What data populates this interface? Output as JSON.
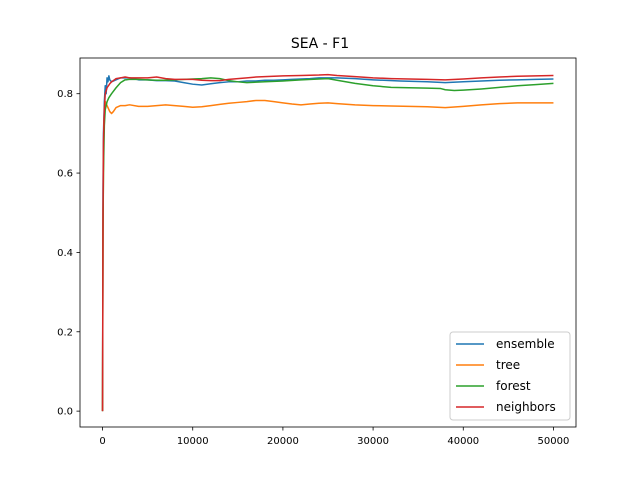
{
  "chart_data": {
    "type": "line",
    "title": "SEA - F1",
    "xlabel": "",
    "ylabel": "",
    "xlim": [
      -2500,
      52500
    ],
    "ylim": [
      -0.04,
      0.89
    ],
    "xticks": [
      0,
      10000,
      20000,
      30000,
      40000,
      50000
    ],
    "xtick_labels": [
      "0",
      "10000",
      "20000",
      "30000",
      "40000",
      "50000"
    ],
    "yticks": [
      0.0,
      0.2,
      0.4,
      0.6,
      0.8
    ],
    "ytick_labels": [
      "0.0",
      "0.2",
      "0.4",
      "0.6",
      "0.8"
    ],
    "grid": false,
    "legend_position": "lower-right",
    "series": [
      {
        "name": "ensemble",
        "color": "#1f77b4",
        "points": [
          [
            0,
            0.0
          ],
          [
            50,
            0.55
          ],
          [
            100,
            0.7
          ],
          [
            200,
            0.78
          ],
          [
            300,
            0.82
          ],
          [
            400,
            0.8
          ],
          [
            500,
            0.84
          ],
          [
            600,
            0.83
          ],
          [
            700,
            0.845
          ],
          [
            800,
            0.835
          ],
          [
            1000,
            0.83
          ],
          [
            1500,
            0.835
          ],
          [
            2000,
            0.84
          ],
          [
            3000,
            0.84
          ],
          [
            4000,
            0.835
          ],
          [
            5000,
            0.835
          ],
          [
            6000,
            0.833
          ],
          [
            7000,
            0.833
          ],
          [
            8000,
            0.832
          ],
          [
            9000,
            0.828
          ],
          [
            10000,
            0.824
          ],
          [
            11000,
            0.822
          ],
          [
            12000,
            0.825
          ],
          [
            13000,
            0.828
          ],
          [
            14000,
            0.83
          ],
          [
            15000,
            0.83
          ],
          [
            16000,
            0.832
          ],
          [
            17000,
            0.832
          ],
          [
            18000,
            0.834
          ],
          [
            19000,
            0.834
          ],
          [
            20000,
            0.835
          ],
          [
            21000,
            0.836
          ],
          [
            22000,
            0.837
          ],
          [
            23000,
            0.838
          ],
          [
            24000,
            0.84
          ],
          [
            25000,
            0.84
          ],
          [
            26000,
            0.84
          ],
          [
            28000,
            0.838
          ],
          [
            30000,
            0.835
          ],
          [
            33000,
            0.832
          ],
          [
            36000,
            0.83
          ],
          [
            38000,
            0.828
          ],
          [
            40000,
            0.83
          ],
          [
            42000,
            0.832
          ],
          [
            44000,
            0.834
          ],
          [
            46000,
            0.835
          ],
          [
            48000,
            0.836
          ],
          [
            50000,
            0.837
          ]
        ]
      },
      {
        "name": "tree",
        "color": "#ff7f0e",
        "points": [
          [
            0,
            0.0
          ],
          [
            50,
            0.45
          ],
          [
            100,
            0.62
          ],
          [
            150,
            0.72
          ],
          [
            200,
            0.76
          ],
          [
            300,
            0.78
          ],
          [
            400,
            0.775
          ],
          [
            600,
            0.765
          ],
          [
            800,
            0.755
          ],
          [
            1000,
            0.75
          ],
          [
            1200,
            0.755
          ],
          [
            1500,
            0.765
          ],
          [
            2000,
            0.77
          ],
          [
            2500,
            0.77
          ],
          [
            3000,
            0.772
          ],
          [
            4000,
            0.768
          ],
          [
            5000,
            0.768
          ],
          [
            6000,
            0.77
          ],
          [
            7000,
            0.772
          ],
          [
            8000,
            0.77
          ],
          [
            9000,
            0.768
          ],
          [
            10000,
            0.766
          ],
          [
            11000,
            0.767
          ],
          [
            12000,
            0.77
          ],
          [
            13000,
            0.773
          ],
          [
            14000,
            0.776
          ],
          [
            15000,
            0.778
          ],
          [
            16000,
            0.78
          ],
          [
            17000,
            0.783
          ],
          [
            18000,
            0.783
          ],
          [
            19000,
            0.78
          ],
          [
            20000,
            0.777
          ],
          [
            21000,
            0.774
          ],
          [
            22000,
            0.772
          ],
          [
            23000,
            0.774
          ],
          [
            24000,
            0.776
          ],
          [
            25000,
            0.777
          ],
          [
            26000,
            0.775
          ],
          [
            28000,
            0.772
          ],
          [
            30000,
            0.77
          ],
          [
            32000,
            0.769
          ],
          [
            34000,
            0.768
          ],
          [
            36000,
            0.767
          ],
          [
            38000,
            0.765
          ],
          [
            40000,
            0.768
          ],
          [
            42000,
            0.772
          ],
          [
            44000,
            0.775
          ],
          [
            46000,
            0.777
          ],
          [
            48000,
            0.777
          ],
          [
            50000,
            0.777
          ]
        ]
      },
      {
        "name": "forest",
        "color": "#2ca02c",
        "points": [
          [
            0,
            0.0
          ],
          [
            50,
            0.45
          ],
          [
            100,
            0.6
          ],
          [
            200,
            0.72
          ],
          [
            300,
            0.76
          ],
          [
            500,
            0.78
          ],
          [
            700,
            0.79
          ],
          [
            1000,
            0.8
          ],
          [
            1500,
            0.815
          ],
          [
            2000,
            0.828
          ],
          [
            2500,
            0.835
          ],
          [
            3000,
            0.836
          ],
          [
            4000,
            0.836
          ],
          [
            5000,
            0.835
          ],
          [
            6000,
            0.834
          ],
          [
            7000,
            0.834
          ],
          [
            8000,
            0.835
          ],
          [
            9000,
            0.836
          ],
          [
            10000,
            0.837
          ],
          [
            11000,
            0.838
          ],
          [
            12000,
            0.84
          ],
          [
            13000,
            0.838
          ],
          [
            14000,
            0.833
          ],
          [
            15000,
            0.83
          ],
          [
            16000,
            0.828
          ],
          [
            18000,
            0.83
          ],
          [
            20000,
            0.832
          ],
          [
            22000,
            0.835
          ],
          [
            24000,
            0.837
          ],
          [
            25000,
            0.838
          ],
          [
            26000,
            0.834
          ],
          [
            28000,
            0.826
          ],
          [
            30000,
            0.82
          ],
          [
            32000,
            0.816
          ],
          [
            34000,
            0.815
          ],
          [
            36000,
            0.814
          ],
          [
            37500,
            0.813
          ],
          [
            38000,
            0.81
          ],
          [
            39000,
            0.808
          ],
          [
            40000,
            0.809
          ],
          [
            42000,
            0.812
          ],
          [
            44000,
            0.816
          ],
          [
            46000,
            0.82
          ],
          [
            48000,
            0.823
          ],
          [
            50000,
            0.826
          ]
        ]
      },
      {
        "name": "neighbors",
        "color": "#d62728",
        "points": [
          [
            0,
            0.0
          ],
          [
            50,
            0.5
          ],
          [
            100,
            0.68
          ],
          [
            200,
            0.76
          ],
          [
            300,
            0.8
          ],
          [
            500,
            0.815
          ],
          [
            800,
            0.825
          ],
          [
            1000,
            0.83
          ],
          [
            1500,
            0.838
          ],
          [
            2000,
            0.84
          ],
          [
            2500,
            0.842
          ],
          [
            3000,
            0.84
          ],
          [
            4000,
            0.84
          ],
          [
            5000,
            0.84
          ],
          [
            6000,
            0.842
          ],
          [
            7000,
            0.838
          ],
          [
            8000,
            0.836
          ],
          [
            9000,
            0.836
          ],
          [
            10000,
            0.836
          ],
          [
            11000,
            0.834
          ],
          [
            12000,
            0.833
          ],
          [
            13000,
            0.833
          ],
          [
            14000,
            0.836
          ],
          [
            15000,
            0.838
          ],
          [
            16000,
            0.84
          ],
          [
            17000,
            0.842
          ],
          [
            18000,
            0.843
          ],
          [
            20000,
            0.845
          ],
          [
            22000,
            0.846
          ],
          [
            24000,
            0.847
          ],
          [
            25000,
            0.848
          ],
          [
            26000,
            0.846
          ],
          [
            28000,
            0.843
          ],
          [
            30000,
            0.84
          ],
          [
            32000,
            0.838
          ],
          [
            34000,
            0.837
          ],
          [
            36000,
            0.836
          ],
          [
            38000,
            0.835
          ],
          [
            40000,
            0.837
          ],
          [
            42000,
            0.84
          ],
          [
            44000,
            0.842
          ],
          [
            46000,
            0.844
          ],
          [
            48000,
            0.845
          ],
          [
            50000,
            0.846
          ]
        ]
      }
    ]
  }
}
